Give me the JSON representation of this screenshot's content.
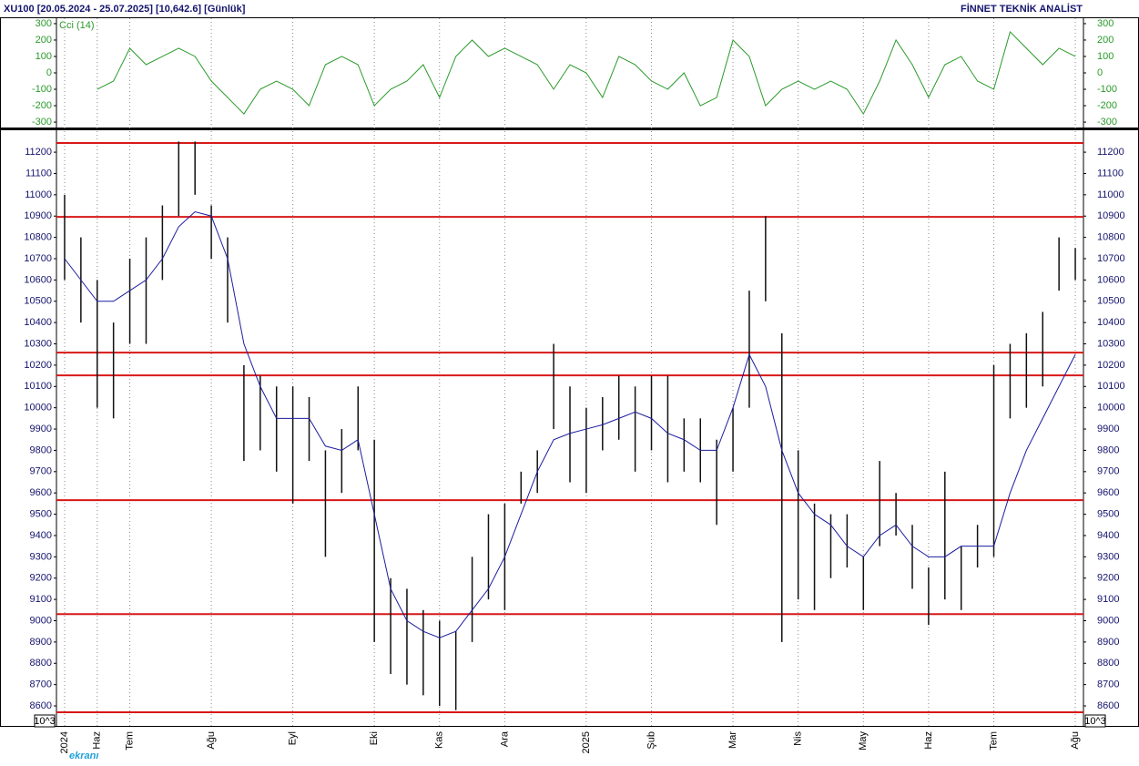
{
  "header": {
    "title": "XU100  [20.05.2024 - 25.07.2025]  [10,642.6]  [Günlük]",
    "brand": "FİNNET TEKNİK ANALİST",
    "watermark": "ekranı"
  },
  "chart_data": [
    {
      "type": "line",
      "ylim": [
        -333,
        333
      ],
      "yticks": [
        -300,
        -200,
        -100,
        0,
        100,
        200,
        300
      ],
      "series": [
        {
          "name": "Cci (14)",
          "color": "#2a9a2a",
          "values": [
            null,
            null,
            -100,
            -50,
            150,
            50,
            100,
            150,
            100,
            -50,
            -150,
            -250,
            -100,
            -50,
            -100,
            -200,
            50,
            100,
            50,
            -200,
            -100,
            -50,
            50,
            -150,
            100,
            200,
            100,
            150,
            100,
            50,
            -100,
            50,
            0,
            -150,
            100,
            50,
            -50,
            -100,
            0,
            -200,
            -150,
            200,
            100,
            -200,
            -100,
            -50,
            -100,
            -50,
            -100,
            -250,
            -50,
            200,
            50,
            -150,
            50,
            100,
            -50,
            -100,
            250,
            150,
            50,
            150,
            100
          ]
        }
      ]
    },
    {
      "type": "hilo",
      "axis_note": "10^3",
      "ylim": [
        8506,
        11303
      ],
      "yticks": [
        8600,
        8700,
        8800,
        8900,
        9000,
        9100,
        9200,
        9300,
        9400,
        9500,
        9600,
        9700,
        9800,
        9900,
        10000,
        10100,
        10200,
        10300,
        10400,
        10500,
        10600,
        10700,
        10800,
        10900,
        11000,
        11100,
        11200
      ],
      "categories": [
        "2024",
        null,
        "Haz",
        null,
        "Tem",
        null,
        null,
        null,
        null,
        "Ağu",
        null,
        null,
        null,
        null,
        "Eyl",
        null,
        null,
        null,
        null,
        "Eki",
        null,
        null,
        null,
        "Kas",
        null,
        null,
        null,
        "Ara",
        null,
        null,
        null,
        null,
        "2025",
        null,
        null,
        null,
        "Şub",
        null,
        null,
        null,
        null,
        "Mar",
        null,
        null,
        null,
        "Nis",
        null,
        null,
        null,
        "May",
        null,
        null,
        null,
        "Haz",
        null,
        null,
        null,
        "Tem",
        null,
        null,
        null,
        null,
        "Ağu"
      ],
      "high": [
        11000,
        10800,
        10600,
        10400,
        10700,
        10800,
        10950,
        11250,
        11250,
        10950,
        10800,
        10200,
        10150,
        10100,
        10100,
        10050,
        9800,
        9900,
        10100,
        9850,
        9200,
        9150,
        9050,
        9000,
        8950,
        9300,
        9500,
        9550,
        9700,
        9800,
        10300,
        10100,
        10000,
        10050,
        10150,
        10100,
        10150,
        10150,
        9950,
        9950,
        9850,
        10000,
        10550,
        10900,
        10350,
        9800,
        9550,
        9500,
        9500,
        9300,
        9750,
        9600,
        9450,
        9250,
        9700,
        9350,
        9450,
        10200,
        10300,
        10350,
        10450,
        10800,
        10750
      ],
      "low": [
        10600,
        10400,
        10000,
        9950,
        10300,
        10300,
        10600,
        10900,
        11000,
        10700,
        10400,
        9750,
        9800,
        9700,
        9550,
        9750,
        9300,
        9600,
        9800,
        8900,
        8750,
        8700,
        8650,
        8600,
        8580,
        8900,
        9100,
        9050,
        9550,
        9600,
        9900,
        9650,
        9600,
        9800,
        9850,
        9700,
        9800,
        9650,
        9700,
        9650,
        9450,
        9700,
        10000,
        10500,
        8900,
        9100,
        9050,
        9200,
        9250,
        9050,
        9350,
        9400,
        9150,
        8980,
        9100,
        9050,
        9250,
        9300,
        9950,
        10000,
        10100,
        10550,
        10600
      ],
      "high_color": "#111111",
      "ma": {
        "color": "#1c1ca0",
        "values": [
          10700,
          10600,
          10500,
          10500,
          10550,
          10600,
          10700,
          10850,
          10920,
          10900,
          10700,
          10300,
          10100,
          9950,
          9950,
          9950,
          9820,
          9800,
          9850,
          9500,
          9150,
          9000,
          8950,
          8920,
          8950,
          9050,
          9150,
          9300,
          9500,
          9700,
          9850,
          9880,
          9900,
          9920,
          9950,
          9980,
          9950,
          9880,
          9850,
          9800,
          9800,
          10000,
          10250,
          10100,
          9800,
          9600,
          9500,
          9450,
          9350,
          9300,
          9400,
          9450,
          9350,
          9300,
          9300,
          9350,
          9350,
          9350,
          9600,
          9800,
          9950,
          10100,
          10250
        ]
      },
      "levels": {
        "color": "#d81818",
        "values": [
          11243,
          10896,
          10259,
          10152,
          9566,
          9031,
          8570
        ]
      }
    }
  ]
}
